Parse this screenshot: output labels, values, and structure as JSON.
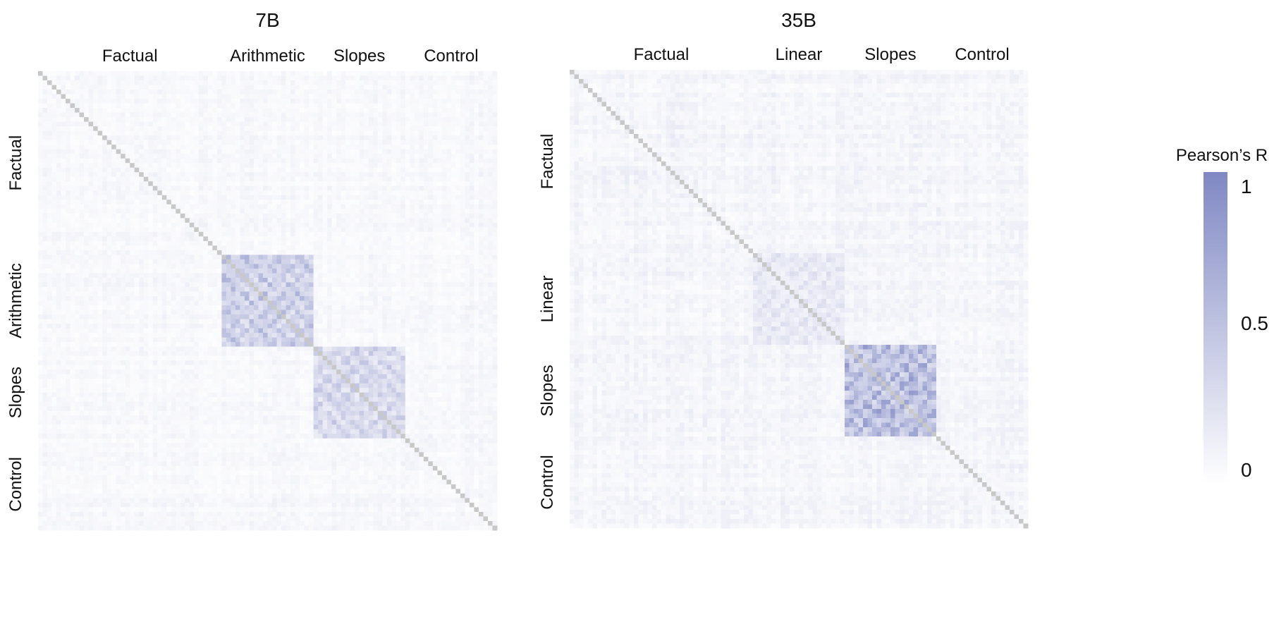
{
  "chart_data": [
    {
      "type": "heatmap",
      "title": "7B",
      "groups": [
        {
          "label": "Factual",
          "size": 40
        },
        {
          "label": "Arithmetic",
          "size": 20
        },
        {
          "label": "Slopes",
          "size": 20
        },
        {
          "label": "Control",
          "size": 20
        }
      ],
      "value_range": [
        0,
        1
      ],
      "diagonal_value": 1,
      "diagonal_color": "#c8c8c8",
      "blocks": [
        {
          "groups": [
            1,
            1
          ],
          "mean_r": 0.45
        },
        {
          "groups": [
            2,
            2
          ],
          "mean_r": 0.35
        }
      ],
      "background_r": 0.06
    },
    {
      "type": "heatmap",
      "title": "35B",
      "groups": [
        {
          "label": "Factual",
          "size": 40
        },
        {
          "label": "Linear",
          "size": 20
        },
        {
          "label": "Slopes",
          "size": 20
        },
        {
          "label": "Control",
          "size": 20
        }
      ],
      "value_range": [
        0,
        1
      ],
      "diagonal_value": 1,
      "diagonal_color": "#c8c8c8",
      "blocks": [
        {
          "groups": [
            1,
            1
          ],
          "mean_r": 0.2
        },
        {
          "groups": [
            2,
            2
          ],
          "mean_r": 0.6
        }
      ],
      "background_r": 0.08
    }
  ],
  "colorbar": {
    "title": "Pearson’s R",
    "ticks": [
      {
        "value": 1,
        "label": "1"
      },
      {
        "value": 0.5,
        "label": "0.5"
      },
      {
        "value": 0,
        "label": "0"
      }
    ],
    "color_low": "#ffffff",
    "color_high": "#8088c3"
  }
}
